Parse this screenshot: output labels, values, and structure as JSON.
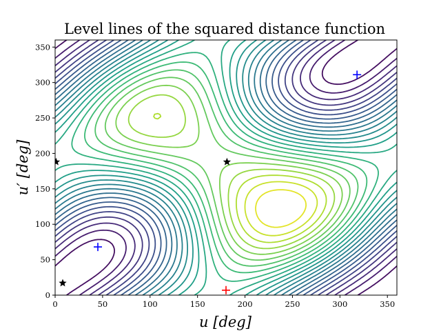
{
  "chart_data": {
    "type": "contour",
    "title": "Level lines of the squared distance function",
    "xlabel": "u [deg]",
    "ylabel": "u′ [deg]",
    "xlim": [
      0,
      360
    ],
    "ylim": [
      0,
      360
    ],
    "xticks": [
      0,
      50,
      100,
      150,
      200,
      250,
      300,
      350
    ],
    "yticks": [
      0,
      50,
      100,
      150,
      200,
      250,
      300,
      350
    ],
    "colormap": "viridis",
    "grid": false,
    "markers": [
      {
        "symbol": "plus",
        "color": "#0000ff",
        "x": 45,
        "y": 68
      },
      {
        "symbol": "plus",
        "color": "#0000ff",
        "x": 318,
        "y": 311
      },
      {
        "symbol": "plus",
        "color": "#ff0000",
        "x": 180,
        "y": 7
      },
      {
        "symbol": "star",
        "color": "#000000",
        "x": 1,
        "y": 188
      },
      {
        "symbol": "star",
        "color": "#000000",
        "x": 8,
        "y": 17
      },
      {
        "symbol": "star",
        "color": "#000000",
        "x": 181,
        "y": 188
      }
    ]
  }
}
